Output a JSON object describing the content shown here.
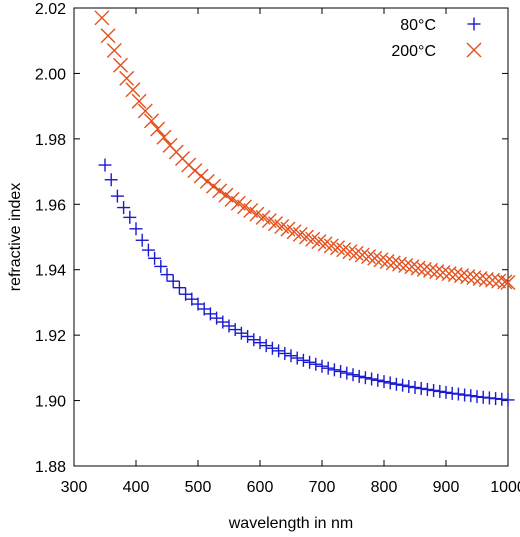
{
  "chart_data": {
    "type": "scatter",
    "xlabel": "wavelength in nm",
    "ylabel": "refractive index",
    "xlim": [
      300,
      1000
    ],
    "ylim": [
      1.88,
      2.02
    ],
    "x_ticks": [
      300,
      400,
      500,
      600,
      700,
      800,
      900,
      1000
    ],
    "y_ticks": [
      "1.88",
      "1.90",
      "1.92",
      "1.94",
      "1.96",
      "1.98",
      "2.00",
      "2.02"
    ],
    "grid": false,
    "legend_position": "top-right",
    "series": [
      {
        "name": "80°C",
        "marker": "plus",
        "color": "#1a1ad0",
        "x": [
          350,
          360,
          370,
          380,
          390,
          400,
          410,
          420,
          430,
          440,
          450,
          460,
          470,
          480,
          490,
          500,
          510,
          520,
          530,
          540,
          550,
          560,
          570,
          580,
          590,
          600,
          610,
          620,
          630,
          640,
          650,
          660,
          670,
          680,
          690,
          700,
          710,
          720,
          730,
          740,
          750,
          760,
          770,
          780,
          790,
          800,
          810,
          820,
          830,
          840,
          850,
          860,
          870,
          880,
          890,
          900,
          910,
          920,
          930,
          940,
          950,
          960,
          970,
          980,
          990,
          1000
        ],
        "y": [
          1.972,
          1.9675,
          1.9625,
          1.959,
          1.956,
          1.9525,
          1.949,
          1.946,
          1.9435,
          1.941,
          1.9385,
          1.9365,
          1.9345,
          1.9325,
          1.931,
          1.9295,
          1.928,
          1.9265,
          1.9252,
          1.924,
          1.9228,
          1.9217,
          1.9206,
          1.9196,
          1.9186,
          1.9177,
          1.9168,
          1.916,
          1.9152,
          1.9144,
          1.9137,
          1.913,
          1.9123,
          1.9117,
          1.9111,
          1.9105,
          1.9099,
          1.9094,
          1.9089,
          1.9084,
          1.9079,
          1.9074,
          1.907,
          1.9066,
          1.9062,
          1.9058,
          1.9054,
          1.905,
          1.9047,
          1.9043,
          1.904,
          1.9037,
          1.9034,
          1.9031,
          1.9028,
          1.9025,
          1.9022,
          1.902,
          1.9017,
          1.9015,
          1.9012,
          1.901,
          1.9008,
          1.9006,
          1.9004,
          1.9002
        ]
      },
      {
        "name": "200°C",
        "marker": "cross",
        "color": "#e4511e",
        "x": [
          345,
          355,
          365,
          375,
          385,
          395,
          405,
          415,
          425,
          435,
          445,
          455,
          465,
          475,
          485,
          495,
          505,
          515,
          525,
          535,
          545,
          555,
          565,
          575,
          585,
          595,
          605,
          615,
          625,
          635,
          645,
          655,
          665,
          675,
          685,
          695,
          705,
          715,
          725,
          735,
          745,
          755,
          765,
          775,
          785,
          795,
          805,
          815,
          825,
          835,
          845,
          855,
          865,
          875,
          885,
          895,
          905,
          915,
          925,
          935,
          945,
          955,
          965,
          975,
          985,
          995,
          1000
        ],
        "y": [
          2.017,
          2.0115,
          2.007,
          2.0025,
          1.9985,
          1.995,
          1.9915,
          1.9885,
          1.9855,
          1.983,
          1.9805,
          1.978,
          1.976,
          1.974,
          1.972,
          1.9703,
          1.9686,
          1.967,
          1.9655,
          1.9641,
          1.9628,
          1.9615,
          1.9603,
          1.9592,
          1.9581,
          1.957,
          1.956,
          1.955,
          1.9541,
          1.9532,
          1.9524,
          1.9516,
          1.9508,
          1.95,
          1.9493,
          1.9486,
          1.9479,
          1.9473,
          1.9467,
          1.9461,
          1.9455,
          1.945,
          1.9445,
          1.944,
          1.9435,
          1.943,
          1.9425,
          1.9421,
          1.9417,
          1.9413,
          1.9409,
          1.9405,
          1.9401,
          1.9398,
          1.9394,
          1.9391,
          1.9388,
          1.9385,
          1.9382,
          1.9379,
          1.9376,
          1.9373,
          1.937,
          1.9368,
          1.9365,
          1.9363,
          1.9361
        ]
      }
    ]
  }
}
